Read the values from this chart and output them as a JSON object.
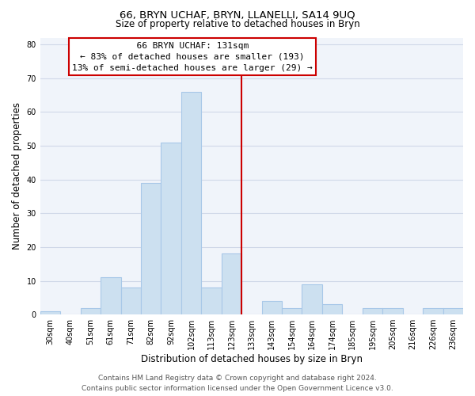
{
  "title": "66, BRYN UCHAF, BRYN, LLANELLI, SA14 9UQ",
  "subtitle": "Size of property relative to detached houses in Bryn",
  "xlabel": "Distribution of detached houses by size in Bryn",
  "ylabel": "Number of detached properties",
  "footer_line1": "Contains HM Land Registry data © Crown copyright and database right 2024.",
  "footer_line2": "Contains public sector information licensed under the Open Government Licence v3.0.",
  "annotation_line1": "66 BRYN UCHAF: 131sqm",
  "annotation_line2": "← 83% of detached houses are smaller (193)",
  "annotation_line3": "13% of semi-detached houses are larger (29) →",
  "bar_color": "#cce0f0",
  "bar_edge_color": "#a8c8e8",
  "vline_color": "#cc0000",
  "categories": [
    "30sqm",
    "40sqm",
    "51sqm",
    "61sqm",
    "71sqm",
    "82sqm",
    "92sqm",
    "102sqm",
    "113sqm",
    "123sqm",
    "133sqm",
    "143sqm",
    "154sqm",
    "164sqm",
    "174sqm",
    "185sqm",
    "195sqm",
    "205sqm",
    "216sqm",
    "226sqm",
    "236sqm"
  ],
  "values": [
    1,
    0,
    2,
    11,
    8,
    39,
    51,
    66,
    8,
    18,
    0,
    4,
    2,
    9,
    3,
    0,
    2,
    2,
    0,
    2,
    2
  ],
  "vline_index": 9.5,
  "ylim": [
    0,
    82
  ],
  "yticks": [
    0,
    10,
    20,
    30,
    40,
    50,
    60,
    70,
    80
  ],
  "title_fontsize": 9.5,
  "subtitle_fontsize": 8.5,
  "axis_label_fontsize": 8.5,
  "tick_fontsize": 7,
  "annotation_fontsize": 8,
  "footer_fontsize": 6.5,
  "grid_color": "#d0d8e8",
  "background_color": "#f0f4fa"
}
